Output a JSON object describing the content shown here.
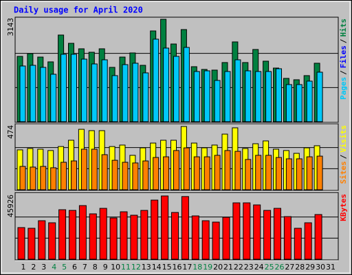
{
  "chart_data": [
    {
      "type": "bar",
      "title": "Daily usage for April 2020",
      "ylim": [
        0,
        3143
      ],
      "yticks": [
        3143
      ],
      "legend_separator": "/",
      "series": [
        {
          "name": "Hits",
          "color": "#008040",
          "values": [
            2004,
            2089,
            1983,
            1836,
            2659,
            2405,
            2237,
            2131,
            2237,
            1667,
            1983,
            2110,
            1730,
            2785,
            3143,
            2384,
            2827,
            1688,
            1604,
            1583,
            1815,
            2448,
            1815,
            2216,
            1857,
            1646,
            1329,
            1287,
            1414,
            1794,
            null
          ]
        },
        {
          "name": "Files",
          "color": "#0000ff",
          "values": [
            null,
            null,
            null,
            null,
            null,
            null,
            null,
            null,
            null,
            null,
            null,
            null,
            null,
            null,
            null,
            null,
            null,
            null,
            null,
            null,
            null,
            null,
            null,
            null,
            null,
            null,
            null,
            null,
            null,
            null,
            null
          ]
        },
        {
          "name": "Pages",
          "color": "#00c8f8",
          "values": [
            1709,
            1730,
            1667,
            1456,
            2068,
            2068,
            1920,
            1772,
            1899,
            1414,
            1751,
            1794,
            1498,
            2532,
            2258,
            2005,
            2279,
            1540,
            1561,
            1266,
            1540,
            1899,
            1561,
            1540,
            1540,
            1625,
            1139,
            1139,
            1245,
            1519,
            null
          ]
        }
      ]
    },
    {
      "type": "bar",
      "ylim": [
        0,
        474
      ],
      "yticks": [
        474
      ],
      "legend_separator": "/",
      "series": [
        {
          "name": "Visits",
          "color": "#ffff00",
          "values": [
            299,
            309,
            304,
            294,
            324,
            371,
            453,
            443,
            443,
            324,
            335,
            258,
            314,
            350,
            371,
            371,
            474,
            350,
            314,
            335,
            417,
            464,
            309,
            345,
            366,
            304,
            294,
            273,
            314,
            330,
            null
          ]
        },
        {
          "name": "Sites",
          "color": "#ff8000",
          "values": [
            175,
            170,
            175,
            165,
            206,
            216,
            304,
            304,
            263,
            221,
            206,
            201,
            216,
            242,
            247,
            294,
            314,
            247,
            247,
            258,
            294,
            288,
            227,
            258,
            258,
            242,
            232,
            232,
            247,
            252,
            null
          ]
        }
      ]
    },
    {
      "type": "bar",
      "ylim": [
        0,
        45926
      ],
      "yticks": [
        45926
      ],
      "categories": [
        "1",
        "2",
        "3",
        "4",
        "5",
        "6",
        "7",
        "8",
        "9",
        "10",
        "11",
        "12",
        "13",
        "14",
        "15",
        "16",
        "17",
        "18",
        "19",
        "20",
        "21",
        "22",
        "23",
        "24",
        "25",
        "26",
        "27",
        "28",
        "29",
        "30",
        "31"
      ],
      "category_colors": [
        "#000000",
        "#000000",
        "#000000",
        "#008040",
        "#008040",
        "#000000",
        "#000000",
        "#000000",
        "#000000",
        "#000000",
        "#008040",
        "#008040",
        "#000000",
        "#000000",
        "#000000",
        "#000000",
        "#000000",
        "#008040",
        "#008040",
        "#000000",
        "#000000",
        "#000000",
        "#000000",
        "#000000",
        "#008040",
        "#008040",
        "#000000",
        "#000000",
        "#000000",
        "#000000",
        "#000000"
      ],
      "series": [
        {
          "name": "KBytes",
          "color": "#ff0000",
          "values": [
            22954,
            22455,
            27944,
            26447,
            35928,
            35429,
            38922,
            32934,
            36926,
            29940,
            34431,
            31936,
            35429,
            42914,
            45926,
            33932,
            45500,
            31437,
            27944,
            26946,
            30439,
            40918,
            40918,
            39421,
            35429,
            36926,
            30938,
            22455,
            26447,
            32435,
            null
          ]
        }
      ]
    }
  ]
}
